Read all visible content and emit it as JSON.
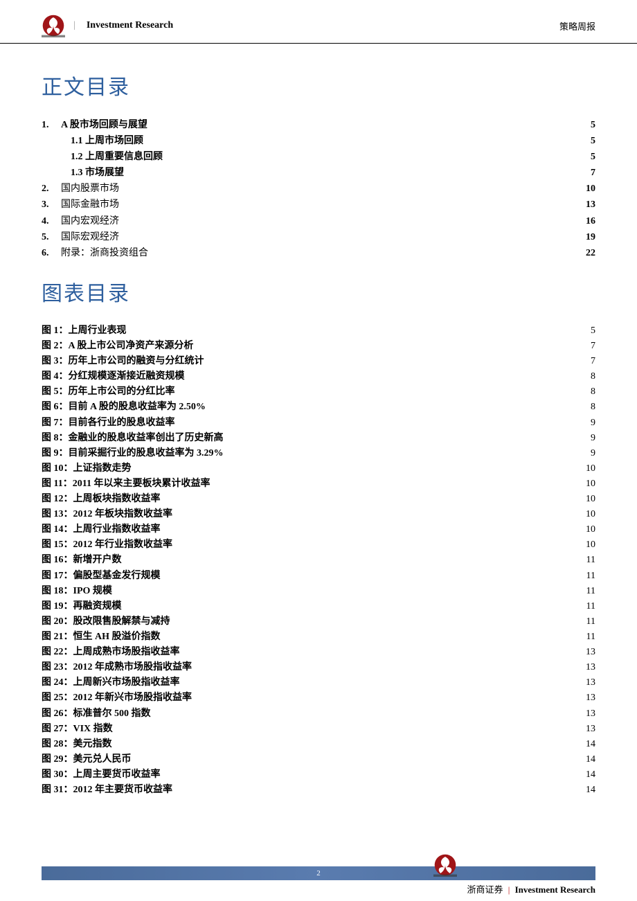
{
  "header": {
    "brand": "Investment    Research",
    "right": "策略周报"
  },
  "title1": "正文目录",
  "toc": [
    {
      "num": "1.",
      "label": "A 股市场回顾与展望",
      "page": "5",
      "bold": true
    },
    {
      "sub": true,
      "label": "1.1 上周市场回顾",
      "page": "5"
    },
    {
      "sub": true,
      "label": "1.2 上周重要信息回顾",
      "page": "5"
    },
    {
      "sub": true,
      "label": "1.3 市场展望",
      "page": "7"
    },
    {
      "num": "2.",
      "label": "国内股票市场",
      "page": "10"
    },
    {
      "num": "3.",
      "label": "国际金融市场",
      "page": "13"
    },
    {
      "num": "4.",
      "label": "国内宏观经济",
      "page": "16"
    },
    {
      "num": "5.",
      "label": "国际宏观经济",
      "page": "19"
    },
    {
      "num": "6.",
      "label": "附录：浙商投资组合",
      "page": "22"
    }
  ],
  "title2": "图表目录",
  "figs": [
    {
      "n": "1",
      "label": "上周行业表现",
      "page": "5"
    },
    {
      "n": "2",
      "label": "A 股上市公司净资产来源分析",
      "page": "7"
    },
    {
      "n": "3",
      "label": "历年上市公司的融资与分红统计",
      "page": "7"
    },
    {
      "n": "4",
      "label": "分红规模逐渐接近融资规模",
      "page": "8"
    },
    {
      "n": "5",
      "label": "历年上市公司的分红比率",
      "page": "8"
    },
    {
      "n": "6",
      "label": "目前 A 股的股息收益率为 2.50%",
      "page": "8"
    },
    {
      "n": "7",
      "label": "目前各行业的股息收益率",
      "page": "9"
    },
    {
      "n": "8",
      "label": "金融业的股息收益率创出了历史新高",
      "page": "9"
    },
    {
      "n": "9",
      "label": "目前采掘行业的股息收益率为 3.29%",
      "page": "9"
    },
    {
      "n": "10",
      "label": "上证指数走势",
      "page": "10"
    },
    {
      "n": "11",
      "label": "2011 年以来主要板块累计收益率",
      "page": "10"
    },
    {
      "n": "12",
      "label": "上周板块指数收益率",
      "page": "10"
    },
    {
      "n": "13",
      "label": "2012 年板块指数收益率",
      "page": "10"
    },
    {
      "n": "14",
      "label": "上周行业指数收益率",
      "page": "10"
    },
    {
      "n": "15",
      "label": "2012 年行业指数收益率",
      "page": "10"
    },
    {
      "n": "16",
      "label": "新增开户数",
      "page": "11"
    },
    {
      "n": "17",
      "label": "偏股型基金发行规模",
      "page": "11"
    },
    {
      "n": "18",
      "label": "IPO 规模",
      "page": "11"
    },
    {
      "n": "19",
      "label": "再融资规模",
      "page": "11"
    },
    {
      "n": "20",
      "label": "股改限售股解禁与减持",
      "page": "11"
    },
    {
      "n": "21",
      "label": "恒生 AH 股溢价指数",
      "page": "11"
    },
    {
      "n": "22",
      "label": "上周成熟市场股指收益率",
      "page": "13"
    },
    {
      "n": "23",
      "label": "2012 年成熟市场股指收益率",
      "page": "13"
    },
    {
      "n": "24",
      "label": "上周新兴市场股指收益率",
      "page": "13"
    },
    {
      "n": "25",
      "label": "2012 年新兴市场股指收益率",
      "page": "13"
    },
    {
      "n": "26",
      "label": "标准普尔 500 指数",
      "page": "13"
    },
    {
      "n": "27",
      "label": "VIX 指数",
      "page": "13"
    },
    {
      "n": "28",
      "label": "美元指数",
      "page": "14"
    },
    {
      "n": "29",
      "label": "美元兑人民币",
      "page": "14"
    },
    {
      "n": "30",
      "label": "上周主要货币收益率",
      "page": "14"
    },
    {
      "n": "31",
      "label": "2012 年主要货币收益率",
      "page": "14"
    }
  ],
  "footer": {
    "page": "2",
    "company": "浙商证券",
    "brand": "Investment Research"
  },
  "colors": {
    "title": "#2e5f9e",
    "logo_red": "#a01518",
    "footer_bar": "#4a6b9a"
  }
}
